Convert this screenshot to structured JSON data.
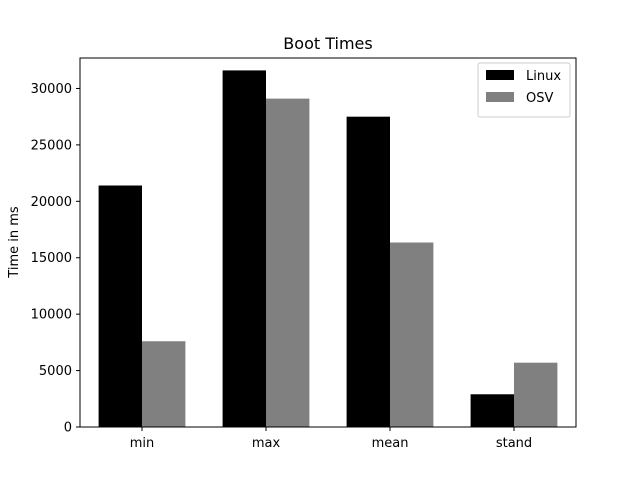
{
  "chart_data": {
    "type": "bar",
    "title": "Boot Times",
    "xlabel": "",
    "ylabel": "Time in ms",
    "categories": [
      "min",
      "max",
      "mean",
      "stand"
    ],
    "series": [
      {
        "name": "Linux",
        "color": "#000000",
        "values": [
          21400,
          31600,
          27500,
          2900
        ]
      },
      {
        "name": "OSV",
        "color": "#808080",
        "values": [
          7600,
          29100,
          16350,
          5700
        ]
      }
    ],
    "ylim": [
      0,
      32700
    ],
    "yticks": [
      0,
      5000,
      10000,
      15000,
      20000,
      25000,
      30000
    ],
    "grid": false,
    "legend_position": "top-right"
  }
}
